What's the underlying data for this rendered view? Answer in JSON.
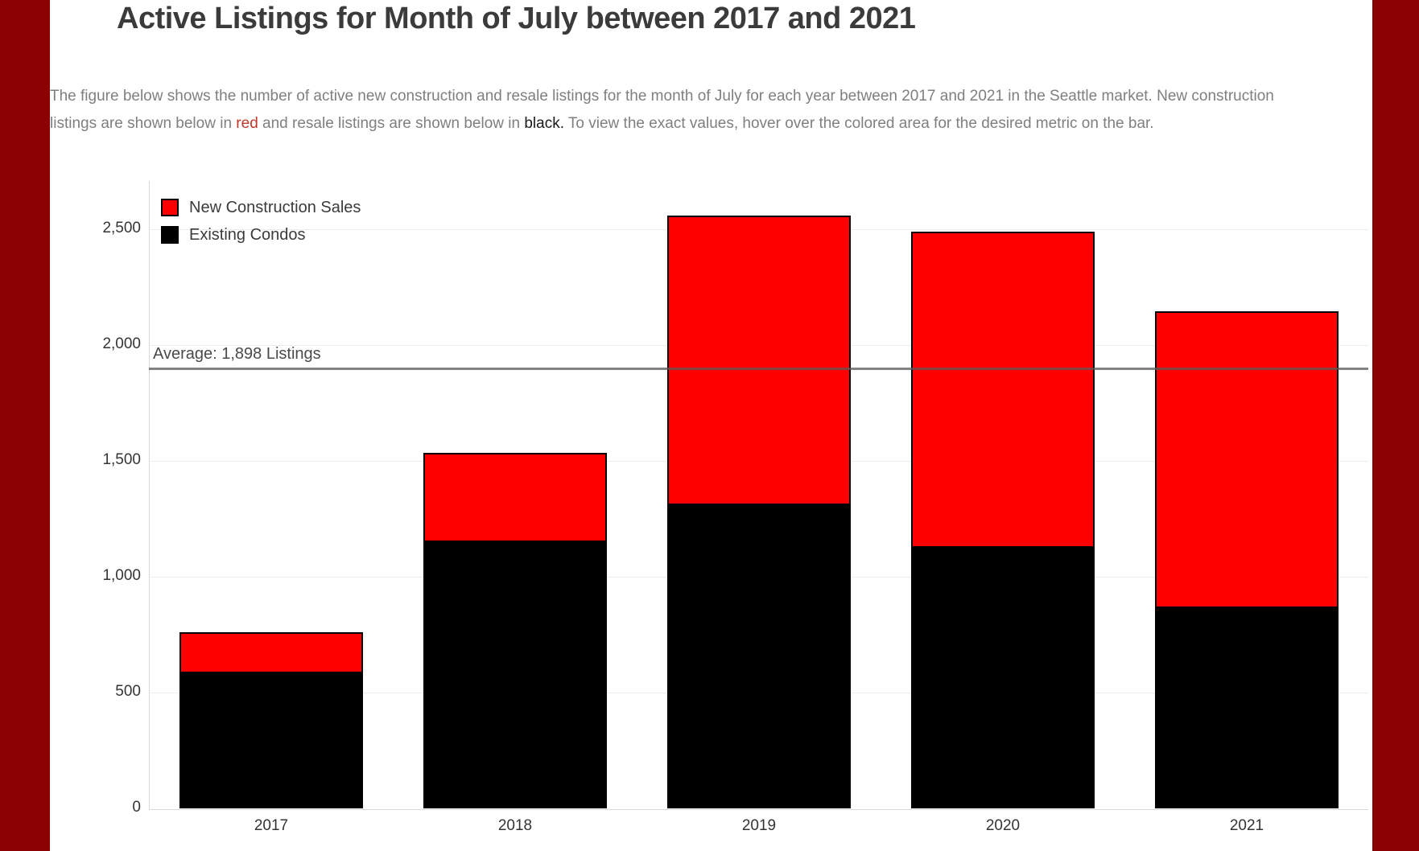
{
  "page": {
    "title": "Active Listings for Month of July between 2017 and 2021",
    "description": {
      "line1": "The figure below shows the number of active new construction and resale listings for the month of July for each year between 2017 and 2021 in the Seattle market. New construction",
      "line2_pre": "listings are shown below in ",
      "red_word": "red",
      "line2_mid": " and resale listings are shown below in ",
      "black_word": "black.",
      "line2_post": " To view the exact values, hover over the colored area for the desired metric on the bar."
    }
  },
  "colors": {
    "frame_band": "#8B0000",
    "new_construction": "#FF0000",
    "existing_condos": "#000000",
    "bar_border": "#000000",
    "gridline": "#ECECEC",
    "axis_line": "#D9D9D9",
    "average_line": "rgba(90,90,90,0.75)",
    "title_text": "#3b3b3b",
    "body_text": "#7f7f7f",
    "red_word_color": "#C0392B",
    "black_word_color": "#1a1a1a"
  },
  "chart_data": {
    "type": "bar",
    "stacked": true,
    "title": "Active Listings for Month of July between 2017 and 2021",
    "categories": [
      "2017",
      "2018",
      "2019",
      "2020",
      "2021"
    ],
    "series": [
      {
        "name": "Existing Condos",
        "color": "#000000",
        "values": [
          585,
          1150,
          1310,
          1125,
          865
        ]
      },
      {
        "name": "New Construction Sales",
        "color": "#FF0000",
        "values": [
          175,
          385,
          1250,
          1365,
          1280
        ]
      }
    ],
    "totals": [
      760,
      1535,
      2560,
      2490,
      2145
    ],
    "xlabel": "",
    "ylabel": "",
    "ylim": [
      0,
      2500
    ],
    "ytick_interval": 500,
    "ytick_labels": [
      "0",
      "500",
      "1,000",
      "1,500",
      "2,000",
      "2,500"
    ],
    "grid": true,
    "legend_position": "top-left",
    "legend": [
      {
        "label": "New Construction Sales",
        "color": "#FF0000"
      },
      {
        "label": "Existing Condos",
        "color": "#000000"
      }
    ],
    "average_line": {
      "value": 1898,
      "label": "Average: 1,898 Listings"
    }
  }
}
